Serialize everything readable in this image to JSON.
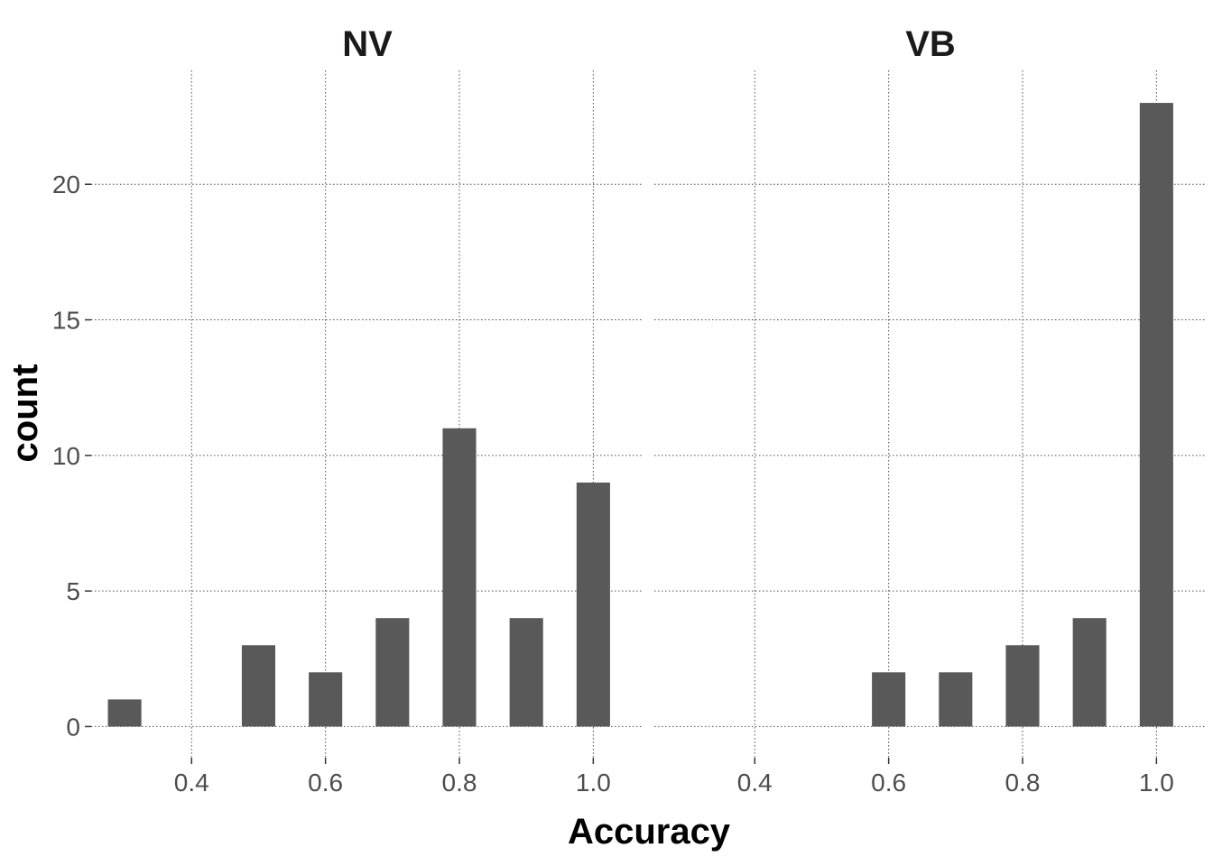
{
  "chart_data": {
    "type": "bar",
    "xlabel": "Accuracy",
    "ylabel": "count",
    "xlim": [
      0.25,
      1.075
    ],
    "ylim": [
      -1.15,
      24.2
    ],
    "x_ticks": [
      "0.4",
      "0.6",
      "0.8",
      "1.0"
    ],
    "x_tick_values": [
      0.4,
      0.6,
      0.8,
      1.0
    ],
    "y_ticks": [
      "0",
      "5",
      "10",
      "15",
      "20"
    ],
    "y_tick_values": [
      0,
      5,
      10,
      15,
      20
    ],
    "bar_width": 0.05,
    "grid": true,
    "bar_color": "#595959",
    "panels": [
      {
        "title": "NV",
        "bars": [
          {
            "x": 0.3,
            "count": 1
          },
          {
            "x": 0.5,
            "count": 3
          },
          {
            "x": 0.6,
            "count": 2
          },
          {
            "x": 0.7,
            "count": 4
          },
          {
            "x": 0.8,
            "count": 11
          },
          {
            "x": 0.9,
            "count": 4
          },
          {
            "x": 1.0,
            "count": 9
          }
        ]
      },
      {
        "title": "VB",
        "bars": [
          {
            "x": 0.6,
            "count": 2
          },
          {
            "x": 0.7,
            "count": 2
          },
          {
            "x": 0.8,
            "count": 3
          },
          {
            "x": 0.9,
            "count": 4
          },
          {
            "x": 1.0,
            "count": 23
          }
        ]
      }
    ]
  }
}
